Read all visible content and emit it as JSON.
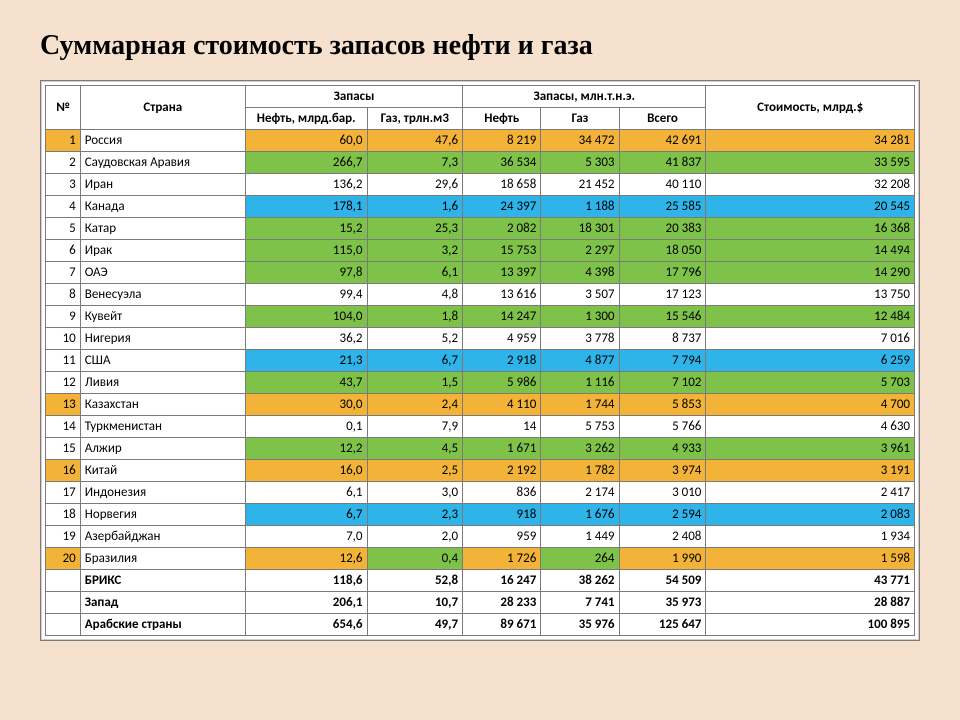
{
  "title": "Суммарная стоимость запасов нефти и газа",
  "colors": {
    "orange": "#f3b338",
    "green": "#7ec249",
    "blue": "#2fb4e9",
    "white": "#ffffff",
    "border": "#7a7a7a",
    "page_bg": "#f5e1ce"
  },
  "fonts": {
    "title_family": "Times New Roman",
    "title_size_pt": 21,
    "body_family": "Calibri",
    "body_size_pt": 10
  },
  "header": {
    "group1": "Запасы",
    "group2": "Запасы, млн.т.н.э.",
    "num": "№",
    "country": "Страна",
    "c1": "Нефть, млрд.бар.",
    "c2": "Газ, трлн.м3",
    "c3": "Нефть",
    "c4": "Газ",
    "c5": "Всего",
    "c6": "Стоимость, млрд.$"
  },
  "rows": [
    {
      "n": "1",
      "country": "Россия",
      "v": [
        "60,0",
        "47,6",
        "8 219",
        "34 472",
        "42 691",
        "34 281"
      ],
      "num_color": "orange",
      "cells_color": [
        "orange",
        "orange",
        "orange",
        "orange",
        "orange",
        "orange"
      ]
    },
    {
      "n": "2",
      "country": "Саудовская Аравия",
      "v": [
        "266,7",
        "7,3",
        "36 534",
        "5 303",
        "41 837",
        "33 595"
      ],
      "num_color": "white",
      "cells_color": [
        "green",
        "green",
        "green",
        "green",
        "green",
        "green"
      ]
    },
    {
      "n": "3",
      "country": "Иран",
      "v": [
        "136,2",
        "29,6",
        "18 658",
        "21 452",
        "40 110",
        "32 208"
      ],
      "num_color": "white",
      "cells_color": [
        "white",
        "white",
        "white",
        "white",
        "white",
        "white"
      ]
    },
    {
      "n": "4",
      "country": "Канада",
      "v": [
        "178,1",
        "1,6",
        "24 397",
        "1 188",
        "25 585",
        "20 545"
      ],
      "num_color": "white",
      "cells_color": [
        "blue",
        "blue",
        "blue",
        "blue",
        "blue",
        "blue"
      ]
    },
    {
      "n": "5",
      "country": "Катар",
      "v": [
        "15,2",
        "25,3",
        "2 082",
        "18 301",
        "20 383",
        "16 368"
      ],
      "num_color": "white",
      "cells_color": [
        "green",
        "green",
        "green",
        "green",
        "green",
        "green"
      ]
    },
    {
      "n": "6",
      "country": "Ирак",
      "v": [
        "115,0",
        "3,2",
        "15 753",
        "2 297",
        "18 050",
        "14 494"
      ],
      "num_color": "white",
      "cells_color": [
        "green",
        "green",
        "green",
        "green",
        "green",
        "green"
      ]
    },
    {
      "n": "7",
      "country": "ОАЭ",
      "v": [
        "97,8",
        "6,1",
        "13 397",
        "4 398",
        "17 796",
        "14 290"
      ],
      "num_color": "white",
      "cells_color": [
        "green",
        "green",
        "green",
        "green",
        "green",
        "green"
      ]
    },
    {
      "n": "8",
      "country": "Венесуэла",
      "v": [
        "99,4",
        "4,8",
        "13 616",
        "3 507",
        "17 123",
        "13 750"
      ],
      "num_color": "white",
      "cells_color": [
        "white",
        "white",
        "white",
        "white",
        "white",
        "white"
      ]
    },
    {
      "n": "9",
      "country": "Кувейт",
      "v": [
        "104,0",
        "1,8",
        "14 247",
        "1 300",
        "15 546",
        "12 484"
      ],
      "num_color": "white",
      "cells_color": [
        "green",
        "green",
        "green",
        "green",
        "green",
        "green"
      ]
    },
    {
      "n": "10",
      "country": "Нигерия",
      "v": [
        "36,2",
        "5,2",
        "4 959",
        "3 778",
        "8 737",
        "7 016"
      ],
      "num_color": "white",
      "cells_color": [
        "white",
        "white",
        "white",
        "white",
        "white",
        "white"
      ]
    },
    {
      "n": "11",
      "country": "США",
      "v": [
        "21,3",
        "6,7",
        "2 918",
        "4 877",
        "7 794",
        "6 259"
      ],
      "num_color": "white",
      "cells_color": [
        "blue",
        "blue",
        "blue",
        "blue",
        "blue",
        "blue"
      ]
    },
    {
      "n": "12",
      "country": "Ливия",
      "v": [
        "43,7",
        "1,5",
        "5 986",
        "1 116",
        "7 102",
        "5 703"
      ],
      "num_color": "white",
      "cells_color": [
        "green",
        "green",
        "green",
        "green",
        "green",
        "green"
      ]
    },
    {
      "n": "13",
      "country": "Казахстан",
      "v": [
        "30,0",
        "2,4",
        "4 110",
        "1 744",
        "5 853",
        "4 700"
      ],
      "num_color": "orange",
      "cells_color": [
        "orange",
        "orange",
        "orange",
        "orange",
        "orange",
        "orange"
      ]
    },
    {
      "n": "14",
      "country": "Туркменистан",
      "v": [
        "0,1",
        "7,9",
        "14",
        "5 753",
        "5 766",
        "4 630"
      ],
      "num_color": "white",
      "cells_color": [
        "white",
        "white",
        "white",
        "white",
        "white",
        "white"
      ]
    },
    {
      "n": "15",
      "country": "Алжир",
      "v": [
        "12,2",
        "4,5",
        "1 671",
        "3 262",
        "4 933",
        "3 961"
      ],
      "num_color": "white",
      "cells_color": [
        "green",
        "green",
        "green",
        "green",
        "green",
        "green"
      ]
    },
    {
      "n": "16",
      "country": "Китай",
      "v": [
        "16,0",
        "2,5",
        "2 192",
        "1 782",
        "3 974",
        "3 191"
      ],
      "num_color": "orange",
      "cells_color": [
        "orange",
        "orange",
        "orange",
        "orange",
        "orange",
        "orange"
      ]
    },
    {
      "n": "17",
      "country": "Индонезия",
      "v": [
        "6,1",
        "3,0",
        "836",
        "2 174",
        "3 010",
        "2 417"
      ],
      "num_color": "white",
      "cells_color": [
        "white",
        "white",
        "white",
        "white",
        "white",
        "white"
      ]
    },
    {
      "n": "18",
      "country": "Норвегия",
      "v": [
        "6,7",
        "2,3",
        "918",
        "1 676",
        "2 594",
        "2 083"
      ],
      "num_color": "white",
      "cells_color": [
        "blue",
        "blue",
        "blue",
        "blue",
        "blue",
        "blue"
      ]
    },
    {
      "n": "19",
      "country": "Азербайджан",
      "v": [
        "7,0",
        "2,0",
        "959",
        "1 449",
        "2 408",
        "1 934"
      ],
      "num_color": "white",
      "cells_color": [
        "white",
        "white",
        "white",
        "white",
        "white",
        "white"
      ]
    },
    {
      "n": "20",
      "country": "Бразилия",
      "v": [
        "12,6",
        "0,4",
        "1 726",
        "264",
        "1 990",
        "1 598"
      ],
      "num_color": "orange",
      "cells_color": [
        "orange",
        "green",
        "orange",
        "green",
        "orange",
        "orange"
      ]
    }
  ],
  "summary": [
    {
      "label": "БРИКС",
      "v": [
        "118,6",
        "52,8",
        "16 247",
        "38 262",
        "54 509",
        "43 771"
      ]
    },
    {
      "label": "Запад",
      "v": [
        "206,1",
        "10,7",
        "28 233",
        "7 741",
        "35 973",
        "28 887"
      ]
    },
    {
      "label": "Арабские страны",
      "v": [
        "654,6",
        "49,7",
        "89 671",
        "35 976",
        "125 647",
        "100 895"
      ]
    }
  ],
  "column_widths_pct": [
    4,
    19,
    14,
    11,
    9,
    9,
    10,
    24
  ]
}
